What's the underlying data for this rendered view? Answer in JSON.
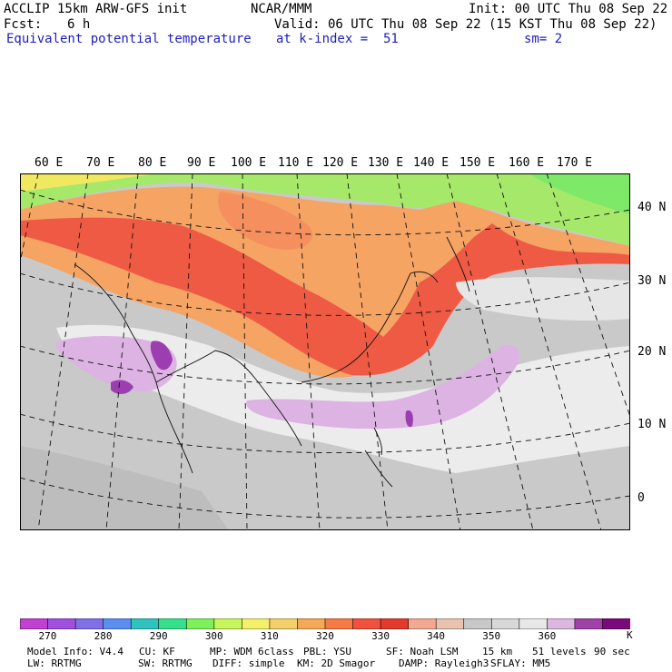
{
  "header": {
    "model": "ACCLIP 15km ARW-GFS init",
    "center": "NCAR/MMM",
    "init": "Init: 00 UTC Thu 08 Sep 22",
    "fcst_label": "Fcst:",
    "fcst_value": "6 h",
    "valid": "Valid: 06 UTC Thu 08 Sep 22 (15 KST Thu 08 Sep 22)",
    "field": "Equivalent potential temperature",
    "level": "at k-index =  51",
    "smoothing": "sm= 2"
  },
  "map": {
    "lon_labels": [
      "60 E",
      "70 E",
      "80 E",
      "90 E",
      "100 E",
      "110 E",
      "120 E",
      "130 E",
      "140 E",
      "150 E",
      "160 E",
      "170 E"
    ],
    "lat_labels": [
      "40 N",
      "30 N",
      "20 N",
      "10 N",
      "0"
    ]
  },
  "colorbar": {
    "colors": [
      "#c13fd1",
      "#a050e0",
      "#8070e8",
      "#5a8ff0",
      "#2fc3c0",
      "#34e08a",
      "#7ef05a",
      "#c8f55a",
      "#f5f06a",
      "#f5cf6a",
      "#f5a855",
      "#f57a45",
      "#f0503c",
      "#e33a2c",
      "#f5a890",
      "#e8c4b0",
      "#c8c8c8",
      "#d8d8d8",
      "#e8e8e8",
      "#dcb8e0",
      "#a040a8",
      "#7a0a7a"
    ],
    "tick_labels": [
      "270",
      "280",
      "290",
      "300",
      "310",
      "320",
      "330",
      "340",
      "350",
      "360"
    ],
    "unit": "K"
  },
  "footer": {
    "line1": [
      "Model Info: V4.4",
      "CU: KF",
      "MP: WDM 6class",
      "PBL: YSU",
      "SF: Noah LSM",
      "15 km",
      "51 levels",
      "90 sec"
    ],
    "line2": [
      "LW: RRTMG",
      "SW: RRTMG",
      "DIFF: simple",
      "KM: 2D Smagor",
      "DAMP: Rayleigh3",
      "SFLAY: MM5"
    ]
  }
}
